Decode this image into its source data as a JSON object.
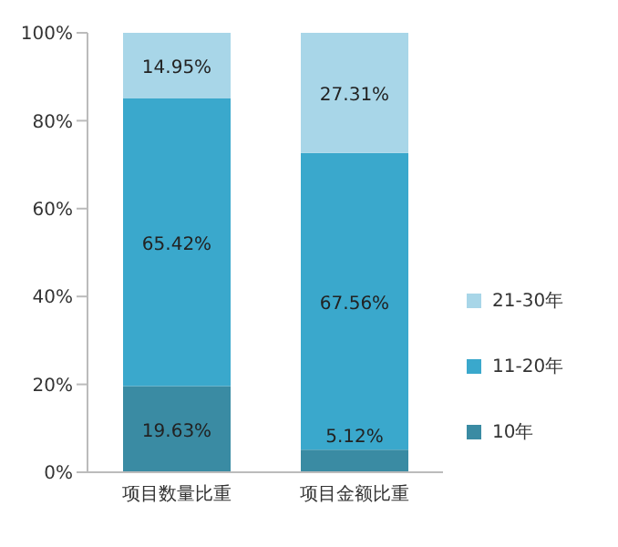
{
  "chart_data": {
    "type": "bar",
    "stacked": true,
    "categories": [
      "项目数量比重",
      "项目金额比重"
    ],
    "series": [
      {
        "name": "10年",
        "color": "#3a8ba3",
        "values": [
          19.63,
          5.12
        ],
        "value_labels": [
          "19.63%",
          "5.12%"
        ]
      },
      {
        "name": "11-20年",
        "color": "#3aa8cc",
        "values": [
          65.42,
          67.56
        ],
        "value_labels": [
          "65.42%",
          "67.56%"
        ]
      },
      {
        "name": "21-30年",
        "color": "#a8d6e8",
        "values": [
          14.95,
          27.31
        ],
        "value_labels": [
          "14.95%",
          "27.31%"
        ]
      }
    ],
    "ylim": [
      0,
      100
    ],
    "yticks": [
      {
        "value": 0,
        "label": "0%"
      },
      {
        "value": 20,
        "label": "20%"
      },
      {
        "value": 40,
        "label": "40%"
      },
      {
        "value": 60,
        "label": "60%"
      },
      {
        "value": 80,
        "label": "80%"
      },
      {
        "value": 100,
        "label": "100%"
      }
    ],
    "grid": false,
    "legend": "right"
  }
}
